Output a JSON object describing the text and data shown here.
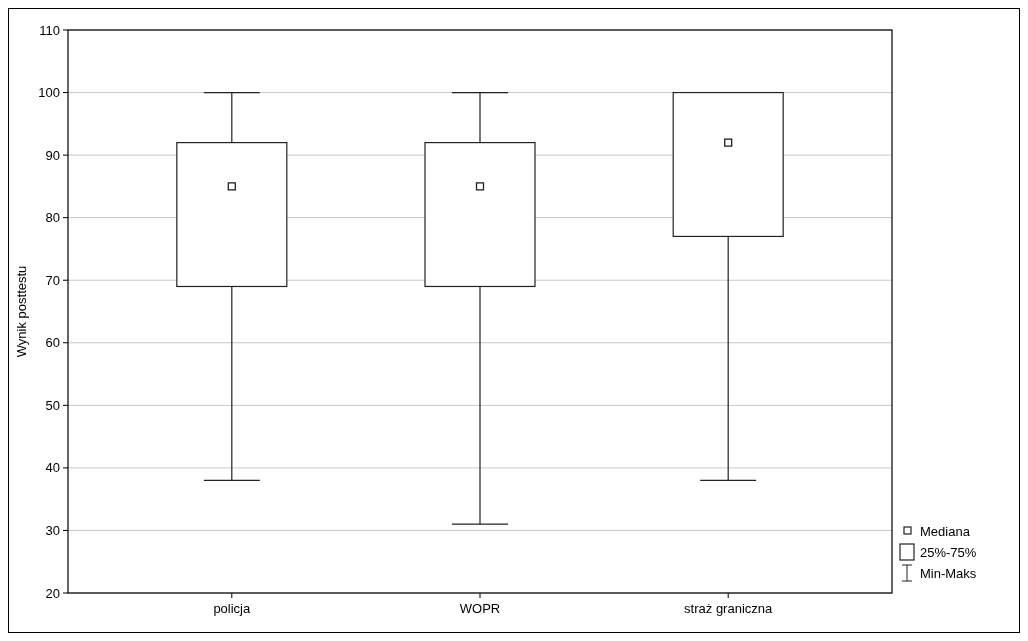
{
  "chart_data": {
    "type": "box",
    "ylabel": "Wynik posttestu",
    "categories": [
      "policja",
      "WOPR",
      "straż graniczna"
    ],
    "boxes": [
      {
        "low": 38,
        "q1": 69,
        "median": 85,
        "q3": 92,
        "high": 100
      },
      {
        "low": 31,
        "q1": 69,
        "median": 85,
        "q3": 92,
        "high": 100
      },
      {
        "low": 38,
        "q1": 77,
        "median": 92,
        "q3": 100,
        "high": 100
      }
    ],
    "ylim": [
      20,
      110
    ],
    "yticks": [
      20,
      30,
      40,
      50,
      60,
      70,
      80,
      90,
      100,
      110
    ],
    "grid": "y",
    "marker": "square",
    "annotations": [
      "Mediana",
      "25%-75%",
      "Min-Maks"
    ]
  }
}
